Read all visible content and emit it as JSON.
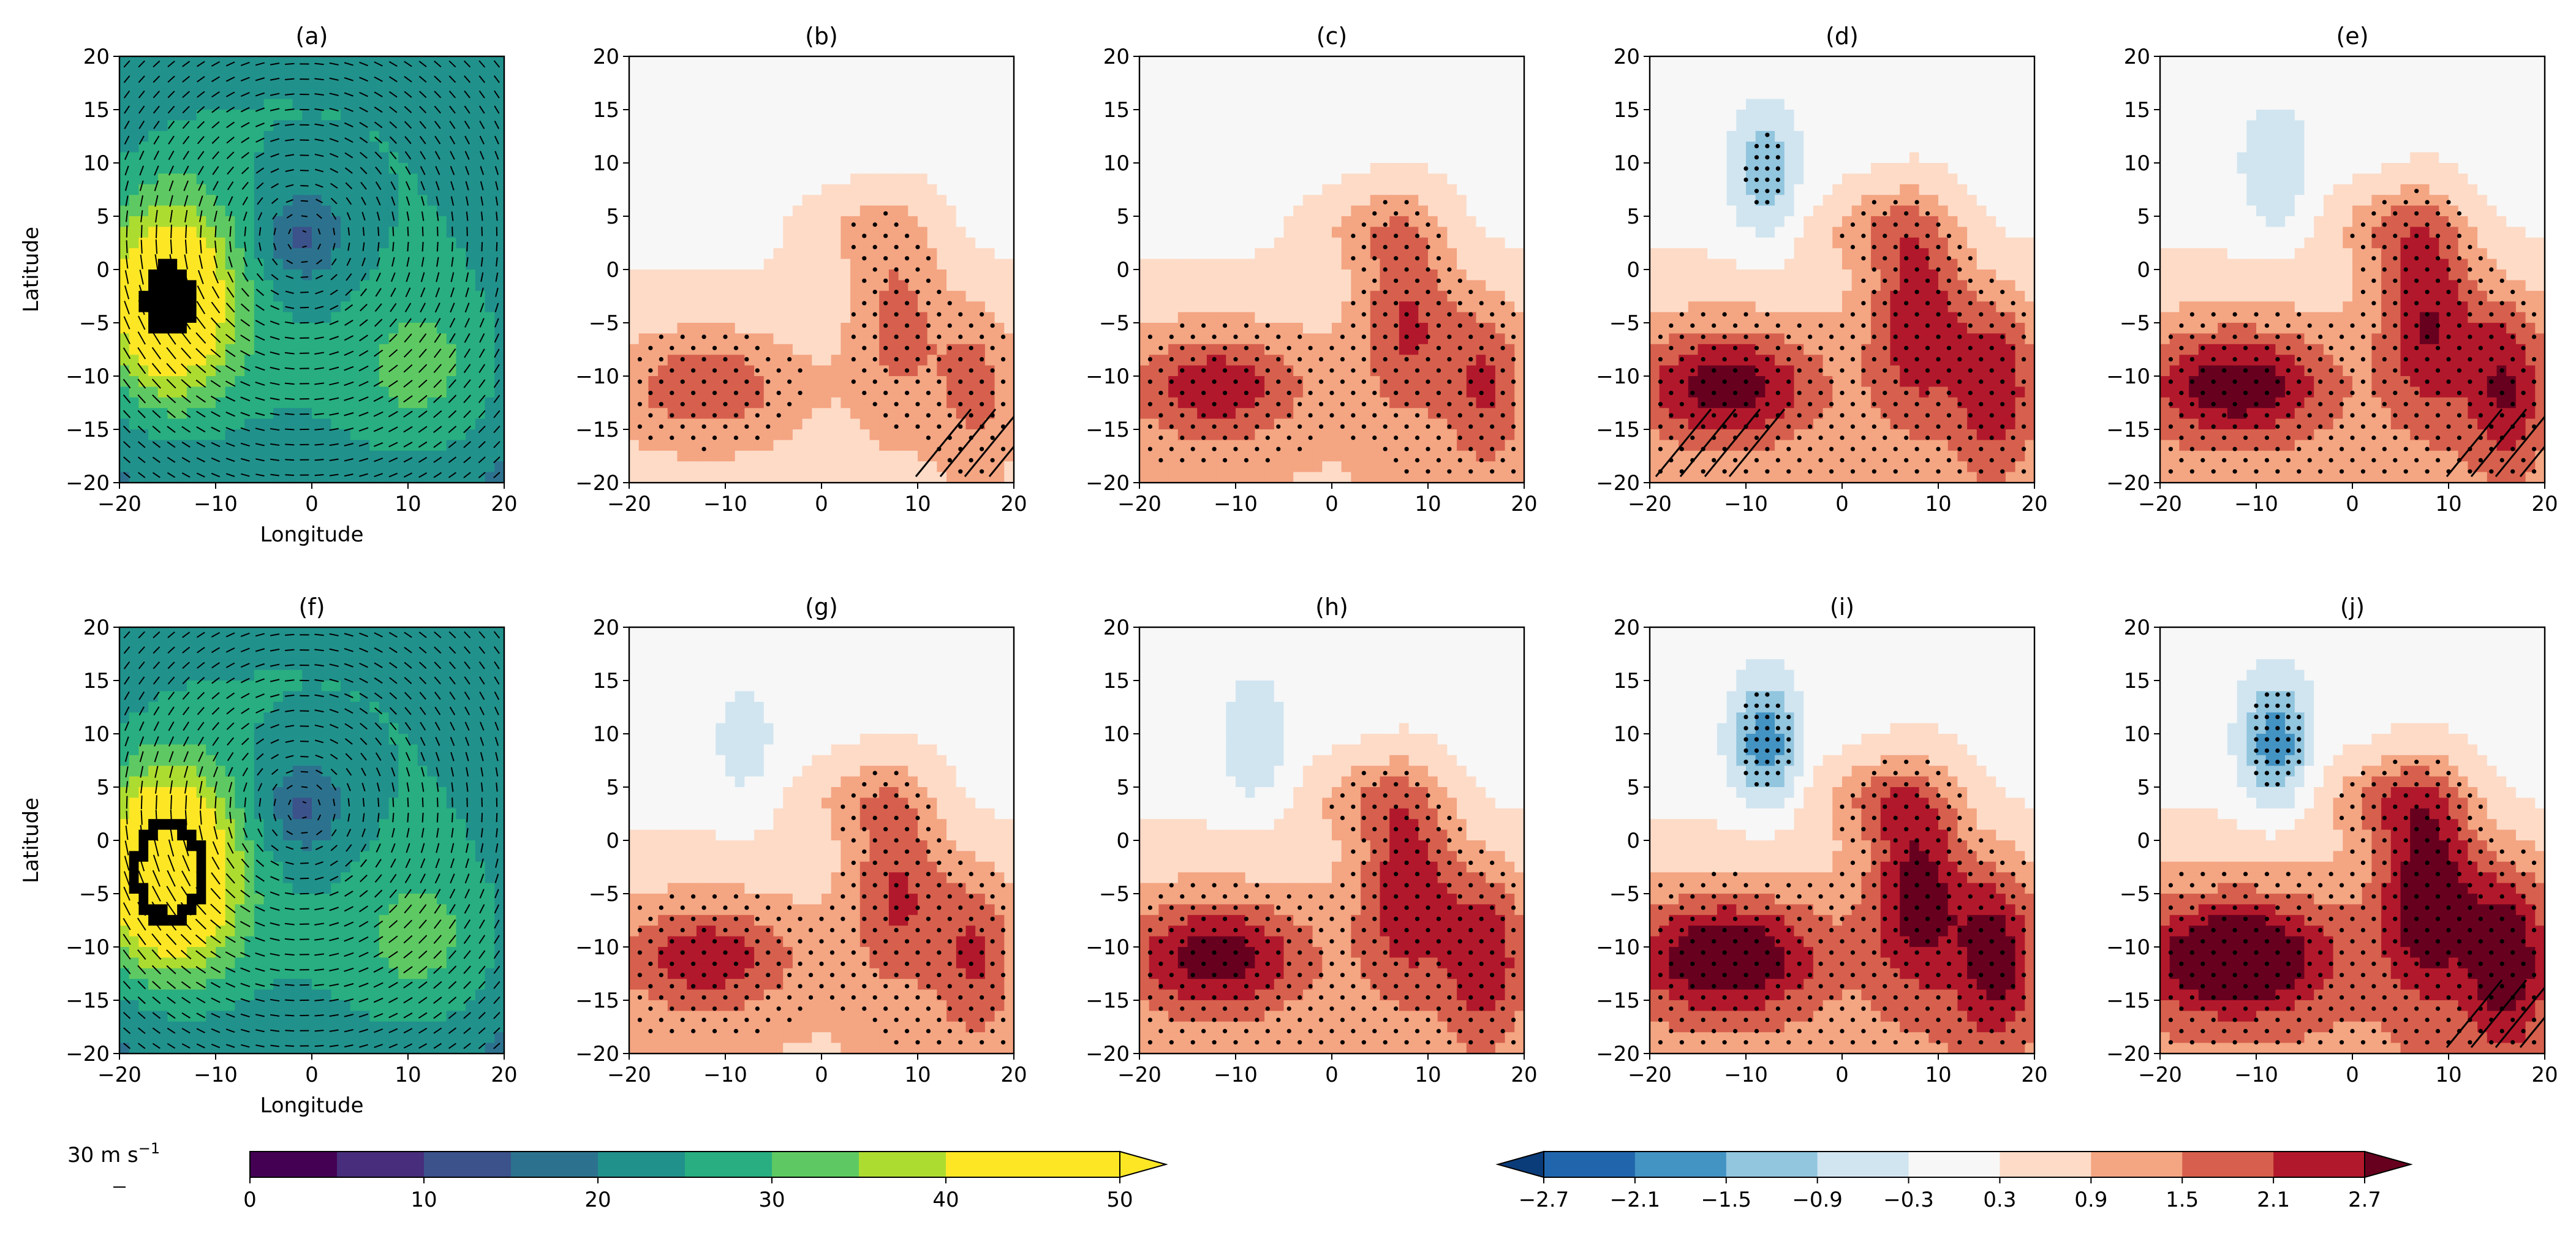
{
  "chart_data": {
    "type": "contour-grid",
    "layout": {
      "rows": 2,
      "cols": 5
    },
    "panels": [
      {
        "id": "a",
        "title": "(a)",
        "kind": "wind",
        "row": 0,
        "col": 0,
        "ylabel": "Latitude",
        "xlabel": "Longitude"
      },
      {
        "id": "b",
        "title": "(b)",
        "kind": "anomaly",
        "row": 0,
        "col": 1,
        "xlabel": ""
      },
      {
        "id": "c",
        "title": "(c)",
        "kind": "anomaly",
        "row": 0,
        "col": 2,
        "xlabel": ""
      },
      {
        "id": "d",
        "title": "(d)",
        "kind": "anomaly",
        "row": 0,
        "col": 3,
        "xlabel": ""
      },
      {
        "id": "e",
        "title": "(e)",
        "kind": "anomaly",
        "row": 0,
        "col": 4,
        "xlabel": ""
      },
      {
        "id": "f",
        "title": "(f)",
        "kind": "wind",
        "row": 1,
        "col": 0,
        "ylabel": "Latitude",
        "xlabel": "Longitude"
      },
      {
        "id": "g",
        "title": "(g)",
        "kind": "anomaly",
        "row": 1,
        "col": 1,
        "xlabel": ""
      },
      {
        "id": "h",
        "title": "(h)",
        "kind": "anomaly",
        "row": 1,
        "col": 2,
        "xlabel": ""
      },
      {
        "id": "i",
        "title": "(i)",
        "kind": "anomaly",
        "row": 1,
        "col": 3,
        "xlabel": ""
      },
      {
        "id": "j",
        "title": "(j)",
        "kind": "anomaly",
        "row": 1,
        "col": 4,
        "xlabel": ""
      }
    ],
    "xlim": [
      -20,
      20
    ],
    "ylim": [
      -20,
      20
    ],
    "x_ticks": [
      "−20",
      "−10",
      "0",
      "10",
      "20"
    ],
    "y_ticks": [
      "20",
      "15",
      "10",
      "5",
      "0",
      "−5",
      "−10",
      "−15",
      "−20"
    ],
    "wind_colorbar": {
      "levels": [
        0,
        5,
        10,
        15,
        20,
        25,
        30,
        35,
        40,
        45,
        50
      ],
      "tick_labels": [
        "0",
        "10",
        "20",
        "30",
        "40",
        "50"
      ],
      "colors": [
        "#440154",
        "#472d7b",
        "#3b528b",
        "#2c728e",
        "#21918c",
        "#28ae80",
        "#5ec962",
        "#addc30",
        "#fde725",
        "#fde725"
      ],
      "extend": "max"
    },
    "anomaly_colorbar": {
      "levels": [
        -2.7,
        -2.1,
        -1.5,
        -0.9,
        -0.3,
        0.3,
        0.9,
        1.5,
        2.1,
        2.7
      ],
      "tick_labels": [
        "−2.7",
        "−2.1",
        "−1.5",
        "−0.9",
        "−0.3",
        "0.3",
        "0.9",
        "1.5",
        "2.1",
        "2.7"
      ],
      "colors": [
        "#0b3c7a",
        "#2166ac",
        "#4393c3",
        "#92c5de",
        "#d1e5f0",
        "#f7f7f7",
        "#fddbc7",
        "#f4a582",
        "#d6604d",
        "#b2182b",
        "#67001f"
      ],
      "extend": "both"
    },
    "quiver_key": {
      "label": "30 m s",
      "superscript": "−1"
    }
  }
}
